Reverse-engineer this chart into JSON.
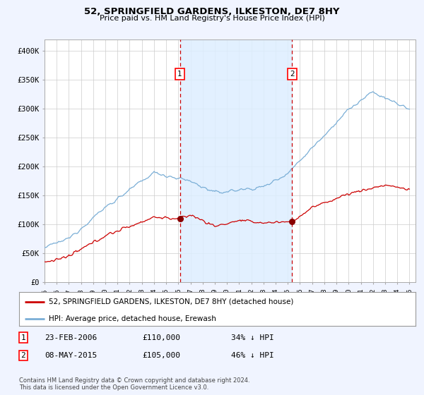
{
  "title": "52, SPRINGFIELD GARDENS, ILKESTON, DE7 8HY",
  "subtitle": "Price paid vs. HM Land Registry's House Price Index (HPI)",
  "background_color": "#f0f4ff",
  "plot_bg_color": "#ffffff",
  "hpi_color": "#7aaed6",
  "price_color": "#cc0000",
  "marker_color": "#880000",
  "vline_color": "#cc0000",
  "shade_color": "#ddeeff",
  "ylim": [
    0,
    420000
  ],
  "yticks": [
    0,
    50000,
    100000,
    150000,
    200000,
    250000,
    300000,
    350000,
    400000
  ],
  "ytick_labels": [
    "£0",
    "£50K",
    "£100K",
    "£150K",
    "£200K",
    "£250K",
    "£300K",
    "£350K",
    "£400K"
  ],
  "x_start_year": 1995,
  "x_end_year": 2025,
  "transaction1_date": 2006.13,
  "transaction1_price": 110000,
  "transaction1_label": "1",
  "transaction2_date": 2015.36,
  "transaction2_price": 105000,
  "transaction2_label": "2",
  "legend_line1": "52, SPRINGFIELD GARDENS, ILKESTON, DE7 8HY (detached house)",
  "legend_line2": "HPI: Average price, detached house, Erewash",
  "table_row1": [
    "1",
    "23-FEB-2006",
    "£110,000",
    "34% ↓ HPI"
  ],
  "table_row2": [
    "2",
    "08-MAY-2015",
    "£105,000",
    "46% ↓ HPI"
  ],
  "footer": "Contains HM Land Registry data © Crown copyright and database right 2024.\nThis data is licensed under the Open Government Licence v3.0.",
  "grid_color": "#cccccc"
}
